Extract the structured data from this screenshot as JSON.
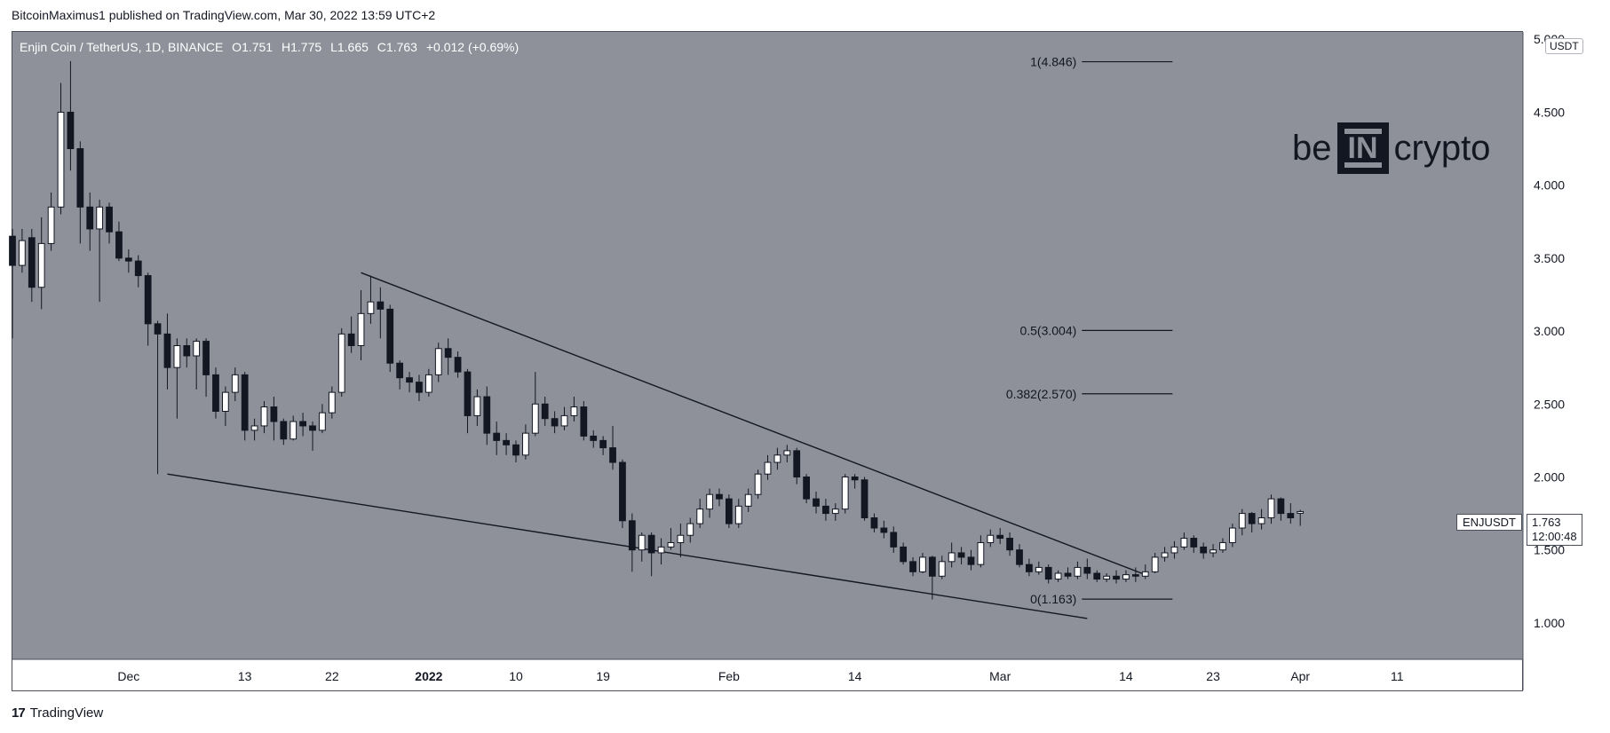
{
  "header": {
    "published": "BitcoinMaximus1 published on TradingView.com, Mar 30, 2022 13:59 UTC+2"
  },
  "legend": {
    "pair": "Enjin Coin / TetherUS, 1D, BINANCE",
    "o_label": "O",
    "o": "1.751",
    "h_label": "H",
    "h": "1.775",
    "l_label": "L",
    "l": "1.665",
    "c_label": "C",
    "c": "1.763",
    "change": "+0.012 (+0.69%)"
  },
  "currency": "USDT",
  "brand": {
    "left": "be",
    "middle": "IN",
    "right": "crypto"
  },
  "footer": {
    "logo": "17",
    "name": "TradingView"
  },
  "price_tag": {
    "symbol": "ENJUSDT",
    "price": "1.763",
    "countdown": "12:00:48"
  },
  "chart_data": {
    "type": "candlestick",
    "title": "",
    "ylim": [
      0.75,
      5.05
    ],
    "y_ticks": [
      1.0,
      1.5,
      2.0,
      2.5,
      3.0,
      3.5,
      4.0,
      4.5,
      5.0
    ],
    "y_tick_labels": [
      "1.000",
      "1.500",
      "2.000",
      "2.500",
      "3.000",
      "3.500",
      "4.000",
      "4.500",
      "5.000"
    ],
    "x_range": [
      "2021-11-19",
      "2022-04-24"
    ],
    "x_ticks": [
      {
        "date": "2021-12-01",
        "label": "Dec"
      },
      {
        "date": "2021-12-13",
        "label": "13"
      },
      {
        "date": "2021-12-22",
        "label": "22"
      },
      {
        "date": "2022-01-01",
        "label": "2022"
      },
      {
        "date": "2022-01-10",
        "label": "10"
      },
      {
        "date": "2022-01-19",
        "label": "19"
      },
      {
        "date": "2022-02-01",
        "label": "Feb"
      },
      {
        "date": "2022-02-14",
        "label": "14"
      },
      {
        "date": "2022-03-01",
        "label": "Mar"
      },
      {
        "date": "2022-03-14",
        "label": "14"
      },
      {
        "date": "2022-03-23",
        "label": "23"
      },
      {
        "date": "2022-04-01",
        "label": "Apr"
      },
      {
        "date": "2022-04-11",
        "label": "11"
      }
    ],
    "candles_start_date": "2021-11-19",
    "candles": [
      [
        3.65,
        3.45,
        3.7,
        2.95
      ],
      [
        3.45,
        3.62,
        3.7,
        3.4
      ],
      [
        3.64,
        3.3,
        3.7,
        3.2
      ],
      [
        3.3,
        3.6,
        3.78,
        3.15
      ],
      [
        3.6,
        3.85,
        3.95,
        3.55
      ],
      [
        3.85,
        4.5,
        4.7,
        3.8
      ],
      [
        4.5,
        4.25,
        4.85,
        4.1
      ],
      [
        4.25,
        3.85,
        4.3,
        3.6
      ],
      [
        3.85,
        3.7,
        3.95,
        3.55
      ],
      [
        3.7,
        3.85,
        3.9,
        3.2
      ],
      [
        3.85,
        3.68,
        3.88,
        3.6
      ],
      [
        3.68,
        3.5,
        3.75,
        3.48
      ],
      [
        3.5,
        3.48,
        3.56,
        3.4
      ],
      [
        3.48,
        3.38,
        3.52,
        3.3
      ],
      [
        3.38,
        3.05,
        3.4,
        2.9
      ],
      [
        3.05,
        2.98,
        3.07,
        2.02
      ],
      [
        2.98,
        2.75,
        3.12,
        2.6
      ],
      [
        2.75,
        2.9,
        2.95,
        2.4
      ],
      [
        2.9,
        2.83,
        2.95,
        2.75
      ],
      [
        2.83,
        2.93,
        2.95,
        2.6
      ],
      [
        2.93,
        2.7,
        2.95,
        2.55
      ],
      [
        2.7,
        2.45,
        2.75,
        2.4
      ],
      [
        2.45,
        2.58,
        2.62,
        2.35
      ],
      [
        2.58,
        2.7,
        2.75,
        2.52
      ],
      [
        2.7,
        2.32,
        2.72,
        2.25
      ],
      [
        2.32,
        2.35,
        2.4,
        2.25
      ],
      [
        2.35,
        2.48,
        2.52,
        2.3
      ],
      [
        2.48,
        2.38,
        2.55,
        2.25
      ],
      [
        2.38,
        2.26,
        2.4,
        2.22
      ],
      [
        2.26,
        2.38,
        2.42,
        2.25
      ],
      [
        2.38,
        2.35,
        2.44,
        2.28
      ],
      [
        2.35,
        2.32,
        2.38,
        2.18
      ],
      [
        2.32,
        2.44,
        2.5,
        2.3
      ],
      [
        2.44,
        2.58,
        2.62,
        2.4
      ],
      [
        2.58,
        2.98,
        3.02,
        2.55
      ],
      [
        2.98,
        2.9,
        3.1,
        2.85
      ],
      [
        2.9,
        3.12,
        3.28,
        2.8
      ],
      [
        3.12,
        3.2,
        3.38,
        3.05
      ],
      [
        3.2,
        3.15,
        3.3,
        2.95
      ],
      [
        3.15,
        2.78,
        3.18,
        2.72
      ],
      [
        2.78,
        2.68,
        2.8,
        2.6
      ],
      [
        2.68,
        2.65,
        2.72,
        2.58
      ],
      [
        2.65,
        2.58,
        2.7,
        2.52
      ],
      [
        2.58,
        2.7,
        2.74,
        2.55
      ],
      [
        2.7,
        2.88,
        2.92,
        2.65
      ],
      [
        2.88,
        2.82,
        2.95,
        2.7
      ],
      [
        2.82,
        2.72,
        2.86,
        2.68
      ],
      [
        2.72,
        2.42,
        2.74,
        2.3
      ],
      [
        2.42,
        2.55,
        2.6,
        2.35
      ],
      [
        2.55,
        2.3,
        2.62,
        2.22
      ],
      [
        2.3,
        2.25,
        2.38,
        2.15
      ],
      [
        2.25,
        2.22,
        2.3,
        2.15
      ],
      [
        2.22,
        2.15,
        2.25,
        2.1
      ],
      [
        2.15,
        2.3,
        2.36,
        2.12
      ],
      [
        2.3,
        2.5,
        2.72,
        2.28
      ],
      [
        2.5,
        2.4,
        2.55,
        2.35
      ],
      [
        2.4,
        2.35,
        2.45,
        2.3
      ],
      [
        2.35,
        2.42,
        2.48,
        2.32
      ],
      [
        2.42,
        2.48,
        2.55,
        2.38
      ],
      [
        2.48,
        2.28,
        2.52,
        2.25
      ],
      [
        2.28,
        2.25,
        2.32,
        2.2
      ],
      [
        2.25,
        2.2,
        2.28,
        2.15
      ],
      [
        2.2,
        2.1,
        2.35,
        2.05
      ],
      [
        2.1,
        1.7,
        2.12,
        1.65
      ],
      [
        1.7,
        1.5,
        1.75,
        1.35
      ],
      [
        1.5,
        1.6,
        1.62,
        1.42
      ],
      [
        1.6,
        1.48,
        1.62,
        1.32
      ],
      [
        1.48,
        1.52,
        1.58,
        1.4
      ],
      [
        1.52,
        1.55,
        1.65,
        1.5
      ],
      [
        1.55,
        1.6,
        1.68,
        1.45
      ],
      [
        1.6,
        1.68,
        1.72,
        1.55
      ],
      [
        1.68,
        1.78,
        1.85,
        1.65
      ],
      [
        1.78,
        1.88,
        1.92,
        1.72
      ],
      [
        1.88,
        1.85,
        1.92,
        1.8
      ],
      [
        1.85,
        1.68,
        1.88,
        1.65
      ],
      [
        1.68,
        1.8,
        1.85,
        1.65
      ],
      [
        1.8,
        1.88,
        1.92,
        1.76
      ],
      [
        1.88,
        2.02,
        2.05,
        1.85
      ],
      [
        2.02,
        2.1,
        2.15,
        1.98
      ],
      [
        2.1,
        2.15,
        2.2,
        2.05
      ],
      [
        2.15,
        2.18,
        2.22,
        2.1
      ],
      [
        2.18,
        2.0,
        2.2,
        1.95
      ],
      [
        2.0,
        1.85,
        2.02,
        1.82
      ],
      [
        1.85,
        1.8,
        1.9,
        1.75
      ],
      [
        1.8,
        1.75,
        1.85,
        1.7
      ],
      [
        1.75,
        1.78,
        1.82,
        1.7
      ],
      [
        1.78,
        2.0,
        2.02,
        1.75
      ],
      [
        2.0,
        1.98,
        2.02,
        1.92
      ],
      [
        1.98,
        1.72,
        2.0,
        1.7
      ],
      [
        1.72,
        1.65,
        1.75,
        1.62
      ],
      [
        1.65,
        1.62,
        1.7,
        1.58
      ],
      [
        1.62,
        1.52,
        1.66,
        1.48
      ],
      [
        1.52,
        1.42,
        1.55,
        1.4
      ],
      [
        1.42,
        1.35,
        1.45,
        1.32
      ],
      [
        1.35,
        1.45,
        1.48,
        1.34
      ],
      [
        1.45,
        1.32,
        1.46,
        1.16
      ],
      [
        1.32,
        1.42,
        1.46,
        1.3
      ],
      [
        1.42,
        1.48,
        1.55,
        1.38
      ],
      [
        1.48,
        1.45,
        1.52,
        1.4
      ],
      [
        1.45,
        1.4,
        1.5,
        1.36
      ],
      [
        1.4,
        1.55,
        1.6,
        1.38
      ],
      [
        1.55,
        1.6,
        1.64,
        1.52
      ],
      [
        1.6,
        1.58,
        1.65,
        1.54
      ],
      [
        1.58,
        1.5,
        1.62,
        1.46
      ],
      [
        1.5,
        1.4,
        1.54,
        1.38
      ],
      [
        1.4,
        1.35,
        1.44,
        1.32
      ],
      [
        1.35,
        1.38,
        1.42,
        1.33
      ],
      [
        1.38,
        1.3,
        1.4,
        1.27
      ],
      [
        1.3,
        1.34,
        1.36,
        1.28
      ],
      [
        1.34,
        1.32,
        1.38,
        1.3
      ],
      [
        1.32,
        1.38,
        1.42,
        1.3
      ],
      [
        1.38,
        1.34,
        1.44,
        1.3
      ],
      [
        1.34,
        1.3,
        1.36,
        1.28
      ],
      [
        1.3,
        1.32,
        1.34,
        1.28
      ],
      [
        1.32,
        1.3,
        1.36,
        1.27
      ],
      [
        1.3,
        1.33,
        1.36,
        1.28
      ],
      [
        1.33,
        1.32,
        1.38,
        1.28
      ],
      [
        1.32,
        1.35,
        1.4,
        1.3
      ],
      [
        1.35,
        1.45,
        1.48,
        1.34
      ],
      [
        1.45,
        1.48,
        1.52,
        1.42
      ],
      [
        1.48,
        1.52,
        1.56,
        1.44
      ],
      [
        1.52,
        1.58,
        1.62,
        1.5
      ],
      [
        1.58,
        1.52,
        1.6,
        1.48
      ],
      [
        1.52,
        1.48,
        1.55,
        1.44
      ],
      [
        1.48,
        1.5,
        1.54,
        1.45
      ],
      [
        1.5,
        1.55,
        1.58,
        1.48
      ],
      [
        1.55,
        1.65,
        1.68,
        1.52
      ],
      [
        1.65,
        1.75,
        1.78,
        1.6
      ],
      [
        1.75,
        1.68,
        1.76,
        1.62
      ],
      [
        1.68,
        1.72,
        1.78,
        1.64
      ],
      [
        1.72,
        1.85,
        1.88,
        1.68
      ],
      [
        1.85,
        1.75,
        1.86,
        1.7
      ],
      [
        1.75,
        1.72,
        1.82,
        1.68
      ],
      [
        1.751,
        1.763,
        1.775,
        1.665
      ]
    ],
    "fibonacci": [
      {
        "label": "1(4.846)",
        "price": 4.846
      },
      {
        "label": "0.5(3.004)",
        "price": 3.004
      },
      {
        "label": "0.382(2.570)",
        "price": 2.57
      },
      {
        "label": "0(1.163)",
        "price": 1.163
      }
    ],
    "trendlines": [
      {
        "name": "upper",
        "start": [
          "2021-12-25",
          3.4
        ],
        "end": [
          "2022-03-16",
          1.33
        ]
      },
      {
        "name": "lower",
        "start": [
          "2021-12-05",
          2.02
        ],
        "end": [
          "2022-03-10",
          1.03
        ]
      }
    ],
    "colors": {
      "background": "#8e919a",
      "up": "#ffffff",
      "down": "#131722",
      "text": "#131722"
    }
  }
}
